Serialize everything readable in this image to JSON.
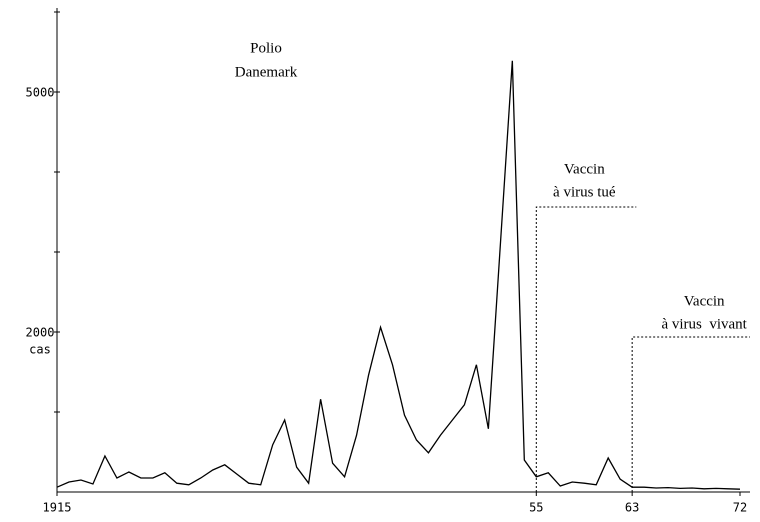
{
  "chart_data": {
    "type": "line",
    "title": [
      "Polio",
      "Danemark"
    ],
    "y_label": "cas",
    "x": [
      1915,
      1916,
      1917,
      1918,
      1919,
      1920,
      1921,
      1922,
      1923,
      1924,
      1925,
      1926,
      1927,
      1928,
      1929,
      1930,
      1931,
      1932,
      1933,
      1934,
      1935,
      1936,
      1937,
      1938,
      1939,
      1940,
      1941,
      1942,
      1943,
      1944,
      1945,
      1946,
      1947,
      1948,
      1949,
      1950,
      1951,
      1952,
      1953,
      1954,
      1955,
      1956,
      1957,
      1958,
      1959,
      1960,
      1961,
      1962,
      1963,
      1964,
      1965,
      1966,
      1967,
      1968,
      1969,
      1970,
      1971,
      1972
    ],
    "series": [
      {
        "name": null,
        "color": "#000000",
        "values": [
          60,
          125,
          150,
          100,
          450,
          175,
          250,
          175,
          175,
          240,
          110,
          90,
          175,
          275,
          340,
          225,
          110,
          90,
          590,
          900,
          310,
          110,
          1160,
          360,
          190,
          710,
          1460,
          2060,
          1590,
          960,
          650,
          490,
          710,
          900,
          1090,
          1590,
          790,
          3090,
          5390,
          400,
          190,
          240,
          75,
          125,
          110,
          90,
          425,
          160,
          60,
          60,
          50,
          55,
          45,
          50,
          40,
          45,
          40,
          35
        ]
      }
    ],
    "xlim": [
      1915,
      1972
    ],
    "ylim": [
      0,
      6000
    ],
    "xticks": [
      1915,
      {
        "value": 1955,
        "label": "55"
      },
      {
        "value": 1963,
        "label": "63"
      },
      {
        "value": 1972,
        "label": "72"
      }
    ],
    "yticks": [
      {
        "value": 1000,
        "label": null
      },
      2000,
      {
        "value": 3000,
        "label": null
      },
      {
        "value": 4000,
        "label": null
      },
      5000,
      {
        "value": 6000,
        "label": null
      }
    ],
    "annotations": [
      {
        "text": [
          "Vaccin",
          "à virus tué"
        ],
        "x": 1955
      },
      {
        "text": [
          "Vaccin",
          "à virus  vivant"
        ],
        "x": 1963
      }
    ]
  }
}
